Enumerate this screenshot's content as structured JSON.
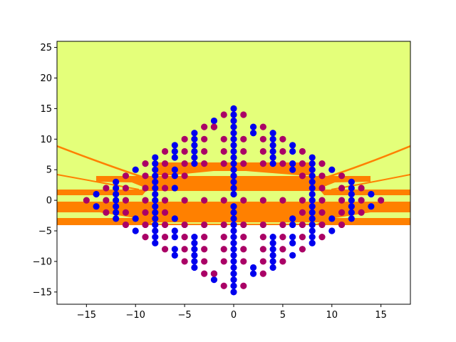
{
  "chart_data": {
    "type": "scatter",
    "title": "",
    "xlabel": "",
    "ylabel": "",
    "xlim": [
      -18,
      18
    ],
    "ylim": [
      -17,
      26
    ],
    "xticks": [
      -15,
      -10,
      -5,
      0,
      5,
      10,
      15
    ],
    "yticks": [
      -15,
      -10,
      -5,
      0,
      5,
      10,
      15,
      20,
      25
    ],
    "xtick_labels": [
      "−15",
      "−10",
      "−5",
      "0",
      "5",
      "10",
      "15"
    ],
    "ytick_labels": [
      "−15",
      "−10",
      "−5",
      "0",
      "5",
      "10",
      "15",
      "20",
      "25"
    ],
    "grid": false,
    "legend": "none",
    "background_regions": [
      {
        "name": "upper region",
        "color": "#e4ff7a"
      },
      {
        "name": "middle region",
        "color": "#ff8000"
      },
      {
        "name": "lower region",
        "color": "#ffffff"
      }
    ],
    "series": [
      {
        "color": "#0000ee",
        "points": [
          [
            0,
            15
          ],
          [
            0,
            14
          ],
          [
            0,
            13
          ],
          [
            0,
            12
          ],
          [
            0,
            11
          ],
          [
            0,
            10
          ],
          [
            0,
            9
          ],
          [
            0,
            8
          ],
          [
            0,
            7
          ],
          [
            0,
            6
          ],
          [
            0,
            5
          ],
          [
            0,
            4
          ],
          [
            0,
            3
          ],
          [
            0,
            2
          ],
          [
            0,
            1
          ],
          [
            0,
            -1
          ],
          [
            0,
            -2
          ],
          [
            0,
            -3
          ],
          [
            0,
            -4
          ],
          [
            0,
            -5
          ],
          [
            0,
            -6
          ],
          [
            0,
            -7
          ],
          [
            0,
            -8
          ],
          [
            0,
            -9
          ],
          [
            0,
            -10
          ],
          [
            0,
            -11
          ],
          [
            0,
            -12
          ],
          [
            0,
            -13
          ],
          [
            0,
            -14
          ],
          [
            0,
            -15
          ],
          [
            -2,
            13
          ],
          [
            -2,
            12
          ],
          [
            -2,
            -12
          ],
          [
            -2,
            -13
          ],
          [
            2,
            12
          ],
          [
            2,
            11
          ],
          [
            2,
            -11
          ],
          [
            2,
            -12
          ],
          [
            -4,
            11
          ],
          [
            -4,
            10
          ],
          [
            -4,
            9
          ],
          [
            -4,
            8
          ],
          [
            -4,
            7
          ],
          [
            -4,
            6
          ],
          [
            -4,
            -6
          ],
          [
            -4,
            -7
          ],
          [
            -4,
            -8
          ],
          [
            -4,
            -9
          ],
          [
            -4,
            -10
          ],
          [
            -4,
            -11
          ],
          [
            4,
            11
          ],
          [
            4,
            10
          ],
          [
            4,
            9
          ],
          [
            4,
            8
          ],
          [
            4,
            7
          ],
          [
            4,
            6
          ],
          [
            4,
            -6
          ],
          [
            4,
            -7
          ],
          [
            4,
            -8
          ],
          [
            4,
            -9
          ],
          [
            4,
            -10
          ],
          [
            4,
            -11
          ],
          [
            -6,
            9
          ],
          [
            -6,
            8
          ],
          [
            -6,
            7
          ],
          [
            -6,
            5
          ],
          [
            -6,
            4
          ],
          [
            -6,
            2
          ],
          [
            -6,
            -3
          ],
          [
            -6,
            -5
          ],
          [
            -6,
            -6
          ],
          [
            -6,
            -8
          ],
          [
            -6,
            -9
          ],
          [
            6,
            9
          ],
          [
            6,
            8
          ],
          [
            6,
            6
          ],
          [
            6,
            5
          ],
          [
            6,
            -3
          ],
          [
            6,
            -4
          ],
          [
            6,
            -6
          ],
          [
            6,
            -7
          ],
          [
            6,
            -9
          ],
          [
            -8,
            7
          ],
          [
            -8,
            6
          ],
          [
            -8,
            5
          ],
          [
            -8,
            4
          ],
          [
            -8,
            3
          ],
          [
            -8,
            2
          ],
          [
            -8,
            1
          ],
          [
            -8,
            0
          ],
          [
            -8,
            -1
          ],
          [
            -8,
            -2
          ],
          [
            -8,
            -3
          ],
          [
            -8,
            -4
          ],
          [
            -8,
            -5
          ],
          [
            -8,
            -6
          ],
          [
            -8,
            -7
          ],
          [
            8,
            7
          ],
          [
            8,
            6
          ],
          [
            8,
            5
          ],
          [
            8,
            4
          ],
          [
            8,
            3
          ],
          [
            8,
            2
          ],
          [
            8,
            1
          ],
          [
            8,
            0
          ],
          [
            8,
            -1
          ],
          [
            8,
            -2
          ],
          [
            8,
            -3
          ],
          [
            8,
            -4
          ],
          [
            8,
            -5
          ],
          [
            8,
            -6
          ],
          [
            8,
            -7
          ],
          [
            -10,
            5
          ],
          [
            -10,
            -3
          ],
          [
            -10,
            -5
          ],
          [
            10,
            5
          ],
          [
            10,
            -3
          ],
          [
            10,
            -5
          ],
          [
            -12,
            3
          ],
          [
            -12,
            2
          ],
          [
            -12,
            1
          ],
          [
            -12,
            0
          ],
          [
            -12,
            -1
          ],
          [
            -12,
            -2
          ],
          [
            -12,
            -3
          ],
          [
            12,
            3
          ],
          [
            12,
            2
          ],
          [
            12,
            1
          ],
          [
            12,
            0
          ],
          [
            12,
            -1
          ],
          [
            12,
            -2
          ],
          [
            12,
            -3
          ],
          [
            -14,
            1
          ],
          [
            -14,
            -1
          ],
          [
            14,
            1
          ],
          [
            14,
            -1
          ]
        ]
      },
      {
        "color": "#aa0066",
        "points": [
          [
            -1,
            14
          ],
          [
            1,
            14
          ],
          [
            -1,
            -14
          ],
          [
            1,
            -14
          ],
          [
            -3,
            12
          ],
          [
            -2,
            12
          ],
          [
            3,
            12
          ],
          [
            -3,
            -12
          ],
          [
            -2,
            -12
          ],
          [
            3,
            -12
          ],
          [
            -5,
            10
          ],
          [
            -3,
            10
          ],
          [
            -1,
            10
          ],
          [
            1,
            10
          ],
          [
            3,
            10
          ],
          [
            5,
            10
          ],
          [
            -5,
            -10
          ],
          [
            -3,
            -10
          ],
          [
            -1,
            -10
          ],
          [
            1,
            -10
          ],
          [
            3,
            -10
          ],
          [
            5,
            -10
          ],
          [
            -7,
            8
          ],
          [
            -5,
            8
          ],
          [
            -3,
            8
          ],
          [
            -1,
            8
          ],
          [
            1,
            8
          ],
          [
            3,
            8
          ],
          [
            5,
            8
          ],
          [
            7,
            8
          ],
          [
            -7,
            -8
          ],
          [
            -5,
            -8
          ],
          [
            -3,
            -8
          ],
          [
            -1,
            -8
          ],
          [
            1,
            -8
          ],
          [
            3,
            -8
          ],
          [
            5,
            -8
          ],
          [
            7,
            -8
          ],
          [
            -9,
            6
          ],
          [
            -7,
            6
          ],
          [
            -5,
            6
          ],
          [
            -3,
            6
          ],
          [
            -1,
            6
          ],
          [
            1,
            6
          ],
          [
            3,
            6
          ],
          [
            5,
            6
          ],
          [
            7,
            6
          ],
          [
            9,
            6
          ],
          [
            -9,
            -6
          ],
          [
            -7,
            -6
          ],
          [
            -5,
            -6
          ],
          [
            -3,
            -6
          ],
          [
            -1,
            -6
          ],
          [
            1,
            -6
          ],
          [
            3,
            -6
          ],
          [
            5,
            -6
          ],
          [
            7,
            -6
          ],
          [
            9,
            -6
          ],
          [
            -11,
            4
          ],
          [
            -9,
            4
          ],
          [
            -7,
            4
          ],
          [
            -5,
            4
          ],
          [
            7,
            4
          ],
          [
            9,
            4
          ],
          [
            11,
            4
          ],
          [
            -11,
            -4
          ],
          [
            -9,
            -4
          ],
          [
            -7,
            -4
          ],
          [
            -5,
            -4
          ],
          [
            -3,
            -4
          ],
          [
            -1,
            -4
          ],
          [
            1,
            -4
          ],
          [
            3,
            -4
          ],
          [
            5,
            -4
          ],
          [
            7,
            -4
          ],
          [
            9,
            -4
          ],
          [
            11,
            -4
          ],
          [
            -13,
            2
          ],
          [
            -11,
            2
          ],
          [
            -9,
            2
          ],
          [
            -7,
            2
          ],
          [
            9,
            2
          ],
          [
            11,
            2
          ],
          [
            13,
            2
          ],
          [
            -13,
            -2
          ],
          [
            -11,
            -2
          ],
          [
            -9,
            -2
          ],
          [
            -7,
            -2
          ],
          [
            7,
            -2
          ],
          [
            9,
            -2
          ],
          [
            11,
            -2
          ],
          [
            13,
            -2
          ],
          [
            -15,
            0
          ],
          [
            -13,
            0
          ],
          [
            -11,
            0
          ],
          [
            -9,
            0
          ],
          [
            -7,
            0
          ],
          [
            -5,
            0
          ],
          [
            -3,
            0
          ],
          [
            -1,
            0
          ],
          [
            1,
            0
          ],
          [
            3,
            0
          ],
          [
            5,
            0
          ],
          [
            7,
            0
          ],
          [
            9,
            0
          ],
          [
            11,
            0
          ],
          [
            13,
            0
          ],
          [
            15,
            0
          ]
        ]
      }
    ]
  }
}
